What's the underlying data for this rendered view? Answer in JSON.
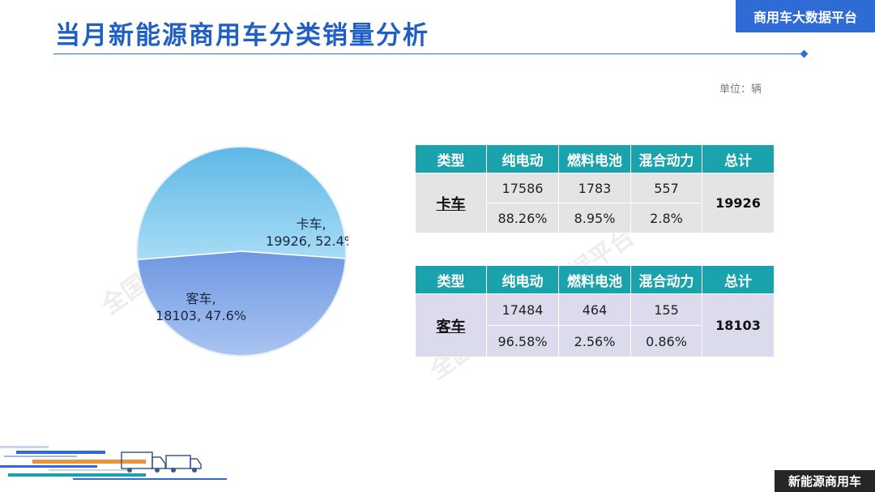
{
  "header": {
    "title": "当月新能源商用车分类销量分析",
    "brand": "商用车大数据平台"
  },
  "unit_label": "单位：辆",
  "watermark": "全国商用车大数据平台",
  "chart_data": {
    "type": "pie",
    "slices": [
      {
        "name": "卡车",
        "value": 19926,
        "percent": 52.4,
        "color": "#7dc6ea",
        "label_line1": "卡车,",
        "label_line2": "19926, 52.4%"
      },
      {
        "name": "客车",
        "value": 18103,
        "percent": 47.6,
        "color": "#8aaee9",
        "label_line1": "客车,",
        "label_line2": "18103, 47.6%"
      }
    ]
  },
  "tables": [
    {
      "headers": [
        "类型",
        "纯电动",
        "燃料电池",
        "混合动力",
        "总计"
      ],
      "row_name": "卡车",
      "counts": [
        "17586",
        "1783",
        "557"
      ],
      "shares": [
        "88.26%",
        "8.95%",
        "2.8%"
      ],
      "total": "19926"
    },
    {
      "headers": [
        "类型",
        "纯电动",
        "燃料电池",
        "混合动力",
        "总计"
      ],
      "row_name": "客车",
      "counts": [
        "17484",
        "464",
        "155"
      ],
      "shares": [
        "96.58%",
        "2.56%",
        "0.86%"
      ],
      "total": "18103"
    }
  ],
  "footer": {
    "brand": "新能源商用车"
  },
  "colors": {
    "title": "#1f5fc6",
    "brand_bg": "#2f6bd4",
    "table_header": "#1aa2ad",
    "truck_row_bg": "#e4e4e6",
    "bus_row_bg": "#dcdbed"
  }
}
